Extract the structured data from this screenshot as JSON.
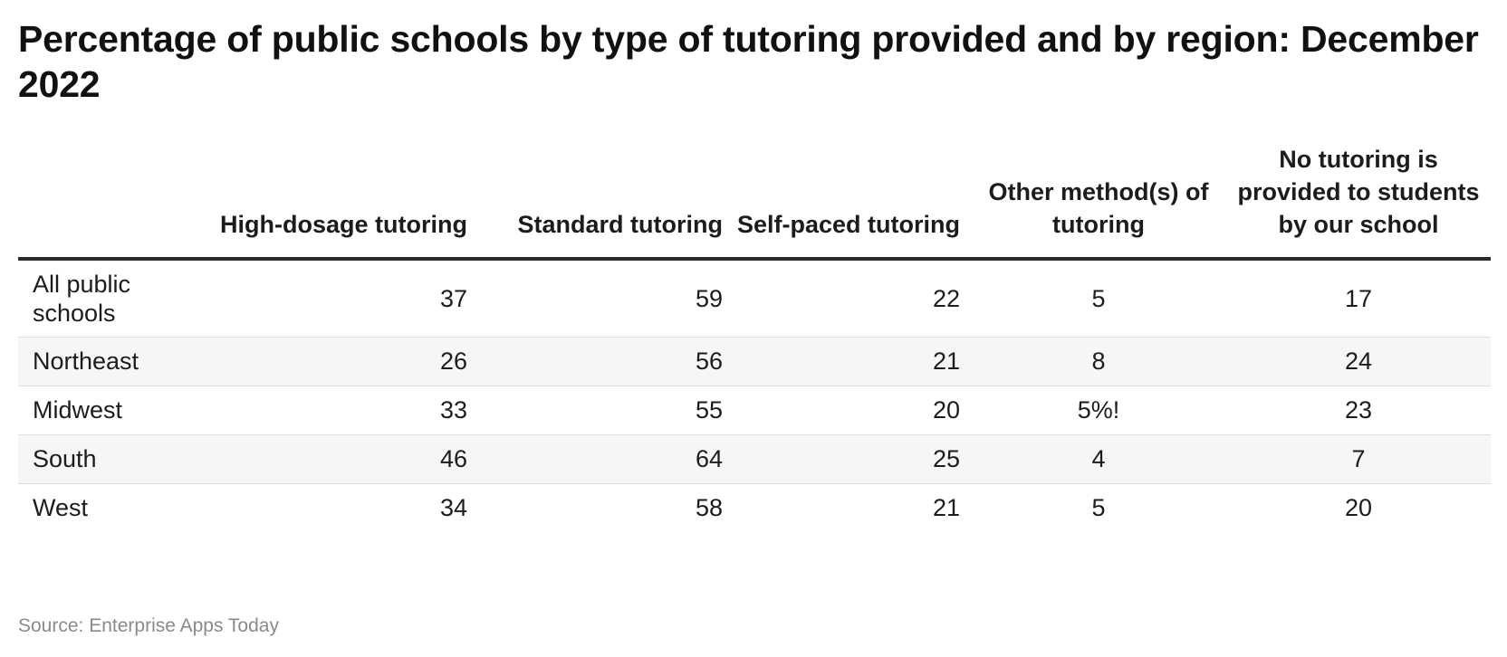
{
  "chart_data": {
    "type": "table",
    "title": "Percentage of public schools by type of tutoring provided and by region: December 2022",
    "columns": [
      "",
      "High-dosage tutoring",
      "Standard tutoring",
      "Self-paced tutoring",
      "Other method(s) of tutoring",
      "No tutoring is provided to students by our school"
    ],
    "rows": [
      [
        "All public schools",
        "37",
        "59",
        "22",
        "5",
        "17"
      ],
      [
        "Northeast",
        "26",
        "56",
        "21",
        "8",
        "24"
      ],
      [
        "Midwest",
        "33",
        "55",
        "20",
        "5%!",
        "23"
      ],
      [
        "South",
        "46",
        "64",
        "25",
        "4",
        "7"
      ],
      [
        "West",
        "34",
        "58",
        "21",
        "5",
        "20"
      ]
    ],
    "source": "Source: Enterprise Apps Today"
  },
  "colors": {
    "text": "#1c1c1c",
    "header_rule": "#2a2a2a",
    "row_stripe": "#f6f6f6",
    "row_rule": "#dedede",
    "source_text": "#8a8a8a"
  }
}
